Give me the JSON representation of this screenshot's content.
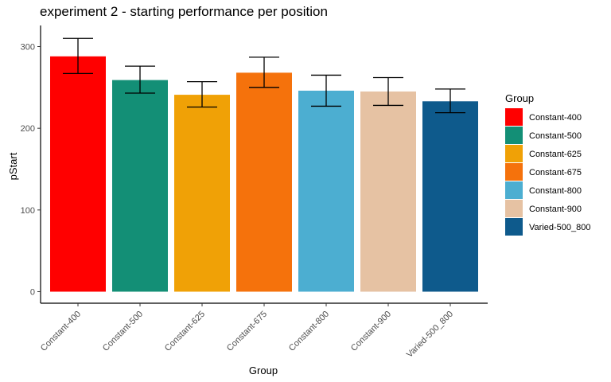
{
  "chart_data": {
    "type": "bar",
    "title": "experiment 2 - starting performance per position",
    "xlabel": "Group",
    "ylabel": "pStart",
    "categories": [
      "Constant-400",
      "Constant-500",
      "Constant-625",
      "Constant-675",
      "Constant-800",
      "Constant-900",
      "Varied-500_800"
    ],
    "values": [
      288,
      259,
      241,
      268,
      246,
      245,
      233
    ],
    "error_low": [
      267,
      243,
      226,
      250,
      227,
      228,
      219
    ],
    "error_high": [
      310,
      276,
      257,
      287,
      265,
      262,
      248
    ],
    "colors": [
      "#ff0000",
      "#138f76",
      "#f0a106",
      "#f5720c",
      "#4caed1",
      "#e6c2a3",
      "#0e5a8c"
    ],
    "ylim": [
      0,
      315
    ],
    "yticks": [
      0,
      100,
      200,
      300
    ],
    "tick_labels": [
      "0",
      "100",
      "200",
      "300"
    ],
    "grid": false,
    "legend": {
      "title": "Group",
      "placement": "right",
      "entries": [
        "Constant-400",
        "Constant-500",
        "Constant-625",
        "Constant-675",
        "Constant-800",
        "Constant-900",
        "Varied-500_800"
      ]
    }
  }
}
